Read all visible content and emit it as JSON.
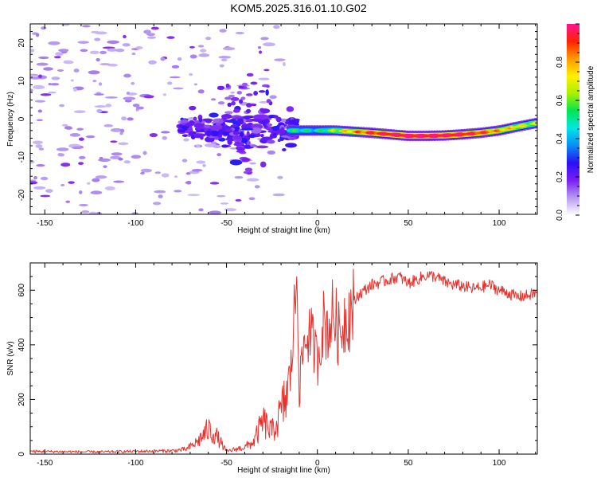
{
  "title": "KOM5.2025.316.01.10.G02",
  "colors": {
    "snr_line": "#e8322d",
    "axis": "#000000",
    "background": "#ffffff"
  },
  "chart_data": [
    {
      "type": "heatmap",
      "name": "spectrogram",
      "xlabel": "Height of straight line (km)",
      "ylabel": "Frequency (Hz)",
      "xlim": [
        -158,
        121
      ],
      "ylim": [
        -25,
        25
      ],
      "xticks": [
        -150,
        -100,
        -50,
        0,
        50,
        100
      ],
      "yticks": [
        -20,
        -10,
        0,
        10,
        20
      ],
      "colorbar": {
        "label": "Normalized spectral amplitude",
        "range": [
          0,
          1
        ],
        "ticks": [
          "0.0",
          "0.2",
          "0.4",
          "0.6",
          "0.8"
        ],
        "tick_values": [
          0.0,
          0.2,
          0.4,
          0.6,
          0.8
        ],
        "colormap": [
          "#ffffff",
          "#b69bf0",
          "#7a1ff2",
          "#2a10f5",
          "#0a8cf5",
          "#00e6e6",
          "#00e650",
          "#aaf000",
          "#fff000",
          "#ff9900",
          "#ff2200",
          "#ff1493"
        ]
      },
      "features": {
        "echo_track": {
          "x": [
            -15,
            0,
            10,
            20,
            30,
            40,
            50,
            60,
            70,
            80,
            90,
            100,
            110,
            121
          ],
          "frequency": [
            -3,
            -3,
            -3,
            -3.3,
            -3.6,
            -4,
            -4.4,
            -4.4,
            -4.3,
            -4,
            -3.6,
            -3,
            -2,
            -1
          ],
          "amplitude": [
            0.45,
            0.4,
            0.55,
            0.7,
            0.8,
            0.85,
            0.9,
            0.9,
            0.88,
            0.85,
            0.8,
            0.7,
            0.62,
            0.55
          ]
        },
        "noise_region_x": [
          -158,
          -15
        ],
        "bright_cluster_x": [
          -75,
          -10
        ]
      }
    },
    {
      "type": "line",
      "name": "snr",
      "xlabel": "Height of straight line (km)",
      "ylabel": "SNR (v/v)",
      "xlim": [
        -158,
        121
      ],
      "ylim": [
        0,
        700
      ],
      "xticks": [
        -150,
        -100,
        -50,
        0,
        50,
        100
      ],
      "yticks": [
        0,
        200,
        400,
        600
      ],
      "series": [
        {
          "name": "SNR",
          "x": [
            -158,
            -140,
            -120,
            -100,
            -80,
            -72,
            -66,
            -60,
            -56,
            -50,
            -45,
            -40,
            -35,
            -30,
            -25,
            -20,
            -15,
            -11,
            -10,
            -8,
            -5,
            -2,
            0,
            3,
            6,
            9,
            12,
            15,
            18,
            22,
            26,
            30,
            35,
            40,
            45,
            50,
            55,
            60,
            65,
            70,
            75,
            80,
            85,
            90,
            95,
            100,
            105,
            110,
            115,
            121
          ],
          "values": [
            10,
            9,
            8,
            10,
            12,
            18,
            45,
            90,
            70,
            10,
            18,
            25,
            45,
            120,
            80,
            150,
            260,
            690,
            220,
            380,
            450,
            400,
            340,
            480,
            460,
            520,
            430,
            500,
            520,
            580,
            600,
            620,
            630,
            640,
            650,
            625,
            640,
            655,
            650,
            630,
            620,
            615,
            605,
            610,
            620,
            600,
            590,
            575,
            580,
            590
          ]
        }
      ]
    }
  ]
}
